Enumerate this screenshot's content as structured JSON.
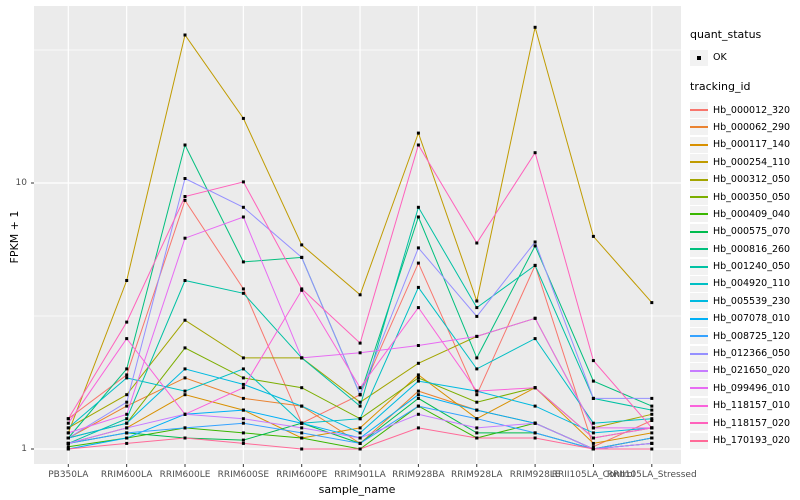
{
  "figure": {
    "background": "#ffffff",
    "panel_background": "#ebebeb",
    "gridline_color": "#ffffff",
    "tick_color": "#333333",
    "tick_label_color": "#4d4d4d"
  },
  "legend": {
    "quant_status": {
      "title": "quant_status",
      "items": [
        {
          "label": "OK",
          "glyph": "black-point"
        }
      ]
    },
    "tracking_id": {
      "title": "tracking_id"
    }
  },
  "chart_data": {
    "type": "line",
    "title": "",
    "xlabel": "sample_name",
    "ylabel": "FPKM + 1",
    "y_scale": "log10",
    "ylim": [
      0.83,
      46
    ],
    "y_major_ticks": [
      1,
      10
    ],
    "y_minor_gridlines": [
      3.162,
      31.62
    ],
    "grid": "on",
    "legend_position": "right",
    "point_marker": "small-black-square",
    "x_categories": [
      "PB350LA",
      "RRIM600LA",
      "RRIM600LE",
      "RRIM600SE",
      "RRIM600PE",
      "RRIM901LA",
      "RRIM928BA",
      "RRIM928LA",
      "RRIM928LE",
      "RRII105LA_Control",
      "RRII105LA_Stressed"
    ],
    "series": [
      {
        "name": "Hb_000012_320",
        "color": "#F8766D",
        "values": [
          1.3,
          1.9,
          8.6,
          4.0,
          1.25,
          1.6,
          5.0,
          1.6,
          4.9,
          1.02,
          1.28
        ]
      },
      {
        "name": "Hb_000062_290",
        "color": "#EA8331",
        "values": [
          1.1,
          1.45,
          1.85,
          1.55,
          1.45,
          1.05,
          1.65,
          1.4,
          1.25,
          1.0,
          1.1
        ]
      },
      {
        "name": "Hb_000117_140",
        "color": "#D89000",
        "values": [
          1.05,
          1.2,
          1.6,
          1.4,
          1.1,
          1.2,
          1.9,
          1.3,
          1.7,
          1.05,
          1.15
        ]
      },
      {
        "name": "Hb_000254_110",
        "color": "#C09B00",
        "values": [
          1.15,
          4.3,
          36.0,
          17.5,
          5.85,
          3.8,
          15.4,
          3.6,
          38.5,
          6.3,
          3.55
        ]
      },
      {
        "name": "Hb_000312_050",
        "color": "#A3A500",
        "values": [
          1.2,
          1.6,
          3.05,
          2.2,
          2.2,
          1.5,
          2.1,
          2.65,
          3.1,
          1.2,
          1.35
        ]
      },
      {
        "name": "Hb_000350_050",
        "color": "#7CAE00",
        "values": [
          1.1,
          1.25,
          2.4,
          1.85,
          1.7,
          1.3,
          1.85,
          1.5,
          1.7,
          1.1,
          1.2
        ]
      },
      {
        "name": "Hb_000409_040",
        "color": "#39B600",
        "values": [
          1.02,
          1.1,
          1.2,
          1.15,
          1.1,
          1.0,
          1.45,
          1.1,
          1.25,
          1.0,
          1.05
        ]
      },
      {
        "name": "Hb_000575_070",
        "color": "#00BB4E",
        "values": [
          1.05,
          1.15,
          1.1,
          1.08,
          1.25,
          1.05,
          1.55,
          1.15,
          1.15,
          1.0,
          1.1
        ]
      },
      {
        "name": "Hb_000816_260",
        "color": "#00BF7D",
        "values": [
          1.1,
          2.0,
          13.9,
          5.05,
          5.25,
          1.6,
          7.45,
          2.2,
          5.8,
          1.8,
          1.45
        ]
      },
      {
        "name": "Hb_001240_050",
        "color": "#00C1A3",
        "values": [
          1.05,
          1.3,
          4.3,
          3.85,
          2.2,
          1.45,
          8.1,
          3.4,
          4.9,
          1.55,
          1.4
        ]
      },
      {
        "name": "Hb_004920_110",
        "color": "#00BFC4",
        "values": [
          1.2,
          1.85,
          1.65,
          2.0,
          1.25,
          1.3,
          4.05,
          2.0,
          2.6,
          1.25,
          1.3
        ]
      },
      {
        "name": "Hb_005539_230",
        "color": "#00BAE0",
        "values": [
          1.1,
          1.25,
          2.0,
          1.75,
          1.45,
          1.15,
          1.8,
          1.65,
          1.45,
          1.15,
          1.2
        ]
      },
      {
        "name": "Hb_007078_010",
        "color": "#00B0F6",
        "values": [
          1.0,
          1.1,
          1.35,
          1.4,
          1.25,
          1.1,
          1.6,
          1.4,
          1.25,
          1.0,
          1.05
        ]
      },
      {
        "name": "Hb_008725_120",
        "color": "#35A2FF",
        "values": [
          1.05,
          1.15,
          1.2,
          1.25,
          1.15,
          1.05,
          1.45,
          1.3,
          1.15,
          1.0,
          1.1
        ]
      },
      {
        "name": "Hb_012366_050",
        "color": "#9590FF",
        "values": [
          1.1,
          1.5,
          10.4,
          8.1,
          5.25,
          1.6,
          5.7,
          3.15,
          6.0,
          1.55,
          1.55
        ]
      },
      {
        "name": "Hb_021650_020",
        "color": "#C77CFF",
        "values": [
          1.05,
          1.2,
          1.35,
          1.3,
          1.2,
          1.1,
          1.35,
          1.2,
          1.25,
          1.0,
          1.05
        ]
      },
      {
        "name": "Hb_099496_010",
        "color": "#E76BF3",
        "values": [
          1.15,
          1.35,
          6.2,
          7.45,
          2.2,
          2.3,
          2.45,
          2.65,
          3.1,
          1.2,
          1.2
        ]
      },
      {
        "name": "Hb_118157_010",
        "color": "#FA62DB",
        "values": [
          1.25,
          2.6,
          1.35,
          1.7,
          3.95,
          1.7,
          3.4,
          1.65,
          1.7,
          1.1,
          1.2
        ]
      },
      {
        "name": "Hb_118157_020",
        "color": "#FF62BC",
        "values": [
          1.3,
          3.0,
          8.9,
          10.1,
          4.0,
          2.5,
          13.9,
          5.95,
          13.0,
          2.15,
          1.2
        ]
      },
      {
        "name": "Hb_170193_020",
        "color": "#FF6A98",
        "values": [
          1.0,
          1.05,
          1.1,
          1.05,
          1.0,
          1.0,
          1.2,
          1.1,
          1.1,
          1.0,
          1.0
        ]
      }
    ]
  },
  "layout_values": {
    "y_tick_labels": [
      "10",
      "1"
    ]
  }
}
